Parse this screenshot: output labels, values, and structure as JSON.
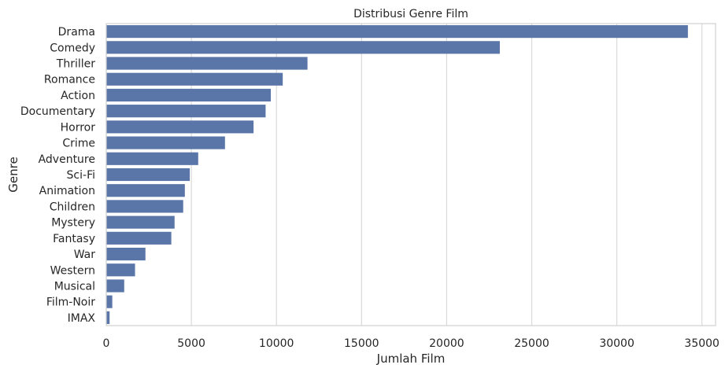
{
  "chart_data": {
    "type": "bar",
    "orientation": "horizontal",
    "title": "Distribusi Genre Film",
    "xlabel": "Jumlah Film",
    "ylabel": "Genre",
    "xlim": [
      0,
      35800
    ],
    "xticks": [
      0,
      5000,
      10000,
      15000,
      20000,
      25000,
      30000,
      35000
    ],
    "grid": "vertical",
    "bar_color": "#5a76a8",
    "categories": [
      "Drama",
      "Comedy",
      "Thriller",
      "Romance",
      "Action",
      "Documentary",
      "Horror",
      "Crime",
      "Adventure",
      "Sci-Fi",
      "Animation",
      "Children",
      "Mystery",
      "Fantasy",
      "War",
      "Western",
      "Musical",
      "Film-Noir",
      "IMAX"
    ],
    "values": [
      34175,
      23124,
      11823,
      10369,
      9668,
      9363,
      8654,
      6976,
      5402,
      4907,
      4617,
      4520,
      4013,
      3821,
      2301,
      1690,
      1054,
      353,
      195
    ]
  }
}
